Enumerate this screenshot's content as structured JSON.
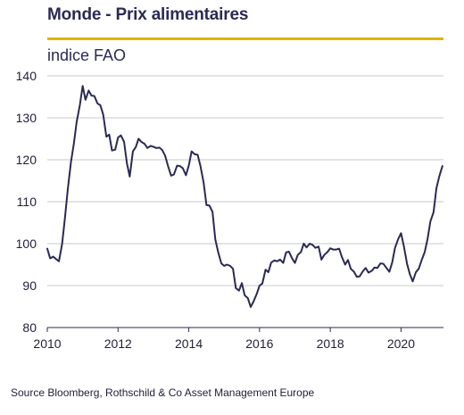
{
  "header": {
    "title": "Monde - Prix alimentaires",
    "subtitle": "indice FAO"
  },
  "footer": {
    "source": "Source Bloomberg, Rothschild  & Co Asset Management  Europe"
  },
  "colors": {
    "title": "#2b2a55",
    "accent_rule": "#e1b300",
    "series_line": "#2b2a55",
    "gridline": "#c8c8c8"
  },
  "chart_data": {
    "type": "line",
    "title": "Monde - Prix alimentaires",
    "ylabel": "indice FAO",
    "xlabel": "",
    "xlim": [
      2010,
      2021.2
    ],
    "ylim": [
      80,
      140
    ],
    "x_ticks": [
      "2010",
      "2012",
      "2014",
      "2016",
      "2018",
      "2020"
    ],
    "y_ticks": [
      "80",
      "90",
      "100",
      "110",
      "120",
      "130",
      "140"
    ],
    "grid": true,
    "series": [
      {
        "values": [
          [
            2010.0,
            98.8
          ],
          [
            2010.08,
            96.5
          ],
          [
            2010.17,
            96.9
          ],
          [
            2010.25,
            96.3
          ],
          [
            2010.33,
            95.8
          ],
          [
            2010.42,
            100.0
          ],
          [
            2010.5,
            106.2
          ],
          [
            2010.58,
            113.0
          ],
          [
            2010.67,
            119.5
          ],
          [
            2010.75,
            123.8
          ],
          [
            2010.83,
            129.0
          ],
          [
            2010.92,
            133.0
          ],
          [
            2011.0,
            137.6
          ],
          [
            2011.08,
            134.3
          ],
          [
            2011.17,
            136.5
          ],
          [
            2011.25,
            135.3
          ],
          [
            2011.33,
            135.2
          ],
          [
            2011.42,
            133.4
          ],
          [
            2011.5,
            133.0
          ],
          [
            2011.58,
            130.8
          ],
          [
            2011.67,
            125.5
          ],
          [
            2011.75,
            126.0
          ],
          [
            2011.83,
            122.2
          ],
          [
            2011.92,
            122.4
          ],
          [
            2012.0,
            125.3
          ],
          [
            2012.08,
            125.8
          ],
          [
            2012.17,
            124.3
          ],
          [
            2012.25,
            119.2
          ],
          [
            2012.33,
            116.0
          ],
          [
            2012.42,
            122.0
          ],
          [
            2012.5,
            123.0
          ],
          [
            2012.58,
            125.0
          ],
          [
            2012.67,
            124.2
          ],
          [
            2012.75,
            123.8
          ],
          [
            2012.83,
            122.8
          ],
          [
            2012.92,
            123.3
          ],
          [
            2013.0,
            123.1
          ],
          [
            2013.08,
            122.8
          ],
          [
            2013.17,
            122.9
          ],
          [
            2013.25,
            122.3
          ],
          [
            2013.33,
            121.0
          ],
          [
            2013.42,
            118.3
          ],
          [
            2013.5,
            116.2
          ],
          [
            2013.58,
            116.5
          ],
          [
            2013.67,
            118.6
          ],
          [
            2013.75,
            118.5
          ],
          [
            2013.83,
            118.0
          ],
          [
            2013.92,
            116.3
          ],
          [
            2014.0,
            118.6
          ],
          [
            2014.08,
            122.0
          ],
          [
            2014.17,
            121.3
          ],
          [
            2014.25,
            121.2
          ],
          [
            2014.33,
            118.5
          ],
          [
            2014.42,
            114.5
          ],
          [
            2014.5,
            109.2
          ],
          [
            2014.58,
            109.1
          ],
          [
            2014.67,
            107.6
          ],
          [
            2014.75,
            101.0
          ],
          [
            2014.83,
            98.0
          ],
          [
            2014.92,
            95.3
          ],
          [
            2015.0,
            94.7
          ],
          [
            2015.08,
            95.0
          ],
          [
            2015.17,
            94.7
          ],
          [
            2015.25,
            94.0
          ],
          [
            2015.33,
            89.4
          ],
          [
            2015.42,
            88.8
          ],
          [
            2015.5,
            90.6
          ],
          [
            2015.58,
            87.7
          ],
          [
            2015.67,
            87.0
          ],
          [
            2015.75,
            84.9
          ],
          [
            2015.83,
            86.2
          ],
          [
            2015.92,
            88.0
          ],
          [
            2016.0,
            90.0
          ],
          [
            2016.08,
            90.5
          ],
          [
            2016.17,
            93.8
          ],
          [
            2016.25,
            93.2
          ],
          [
            2016.33,
            95.5
          ],
          [
            2016.42,
            96.0
          ],
          [
            2016.5,
            95.8
          ],
          [
            2016.58,
            96.2
          ],
          [
            2016.67,
            95.4
          ],
          [
            2016.75,
            97.9
          ],
          [
            2016.83,
            98.1
          ],
          [
            2016.92,
            96.5
          ],
          [
            2017.0,
            95.4
          ],
          [
            2017.08,
            97.3
          ],
          [
            2017.17,
            98.0
          ],
          [
            2017.25,
            100.0
          ],
          [
            2017.33,
            99.1
          ],
          [
            2017.42,
            100.0
          ],
          [
            2017.5,
            99.7
          ],
          [
            2017.58,
            99.0
          ],
          [
            2017.67,
            99.3
          ],
          [
            2017.75,
            96.2
          ],
          [
            2017.83,
            97.3
          ],
          [
            2017.92,
            98.0
          ],
          [
            2018.0,
            98.9
          ],
          [
            2018.08,
            98.6
          ],
          [
            2018.17,
            98.6
          ],
          [
            2018.25,
            98.8
          ],
          [
            2018.33,
            96.8
          ],
          [
            2018.42,
            95.0
          ],
          [
            2018.5,
            96.1
          ],
          [
            2018.58,
            94.0
          ],
          [
            2018.67,
            93.3
          ],
          [
            2018.75,
            92.1
          ],
          [
            2018.83,
            92.2
          ],
          [
            2018.92,
            93.4
          ],
          [
            2019.0,
            94.2
          ],
          [
            2019.08,
            93.1
          ],
          [
            2019.17,
            93.5
          ],
          [
            2019.25,
            94.3
          ],
          [
            2019.33,
            94.2
          ],
          [
            2019.42,
            95.3
          ],
          [
            2019.5,
            95.2
          ],
          [
            2019.58,
            94.3
          ],
          [
            2019.67,
            93.3
          ],
          [
            2019.75,
            95.5
          ],
          [
            2019.83,
            99.0
          ],
          [
            2019.92,
            101.1
          ],
          [
            2020.0,
            102.5
          ],
          [
            2020.08,
            99.4
          ],
          [
            2020.17,
            95.2
          ],
          [
            2020.25,
            92.7
          ],
          [
            2020.33,
            91.0
          ],
          [
            2020.42,
            93.2
          ],
          [
            2020.5,
            94.0
          ],
          [
            2020.58,
            96.0
          ],
          [
            2020.67,
            98.0
          ],
          [
            2020.75,
            101.1
          ],
          [
            2020.83,
            105.3
          ],
          [
            2020.92,
            107.5
          ],
          [
            2021.0,
            113.2
          ],
          [
            2021.08,
            116.0
          ],
          [
            2021.17,
            118.5
          ]
        ]
      }
    ]
  }
}
